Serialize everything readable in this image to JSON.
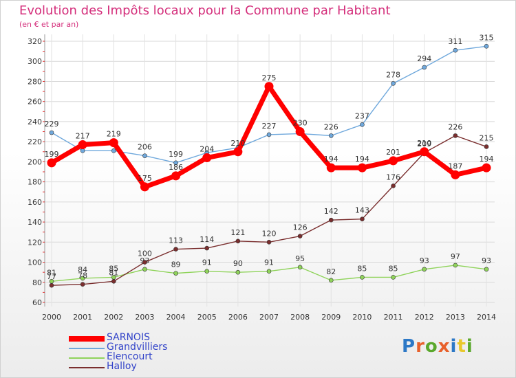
{
  "title": "Evolution des Impôts locaux pour la Commune par Habitant",
  "subtitle": "(en € et par an)",
  "brand": {
    "text": "Proxiti",
    "colors": [
      "#2c78c6",
      "#e8612c",
      "#5aa82c",
      "#e8612c",
      "#2c78c6",
      "#e8c82c",
      "#5aa82c"
    ]
  },
  "chart_data": {
    "type": "line",
    "x": [
      "2000",
      "2001",
      "2002",
      "2003",
      "2004",
      "2005",
      "2006",
      "2007",
      "2008",
      "2009",
      "2010",
      "2011",
      "2012",
      "2013",
      "2014"
    ],
    "ylim": [
      60,
      320
    ],
    "yticks": [
      60,
      80,
      100,
      120,
      140,
      160,
      180,
      200,
      220,
      240,
      260,
      280,
      300,
      320
    ],
    "grid": true,
    "legend_position": "bottom-left",
    "series": [
      {
        "name": "Grandvilliers",
        "color": "#6fa8dc",
        "values": [
          229,
          211,
          211,
          206,
          199,
          209,
          214,
          227,
          228,
          226,
          237,
          278,
          294,
          311,
          315
        ],
        "labels": [
          "229",
          "",
          "",
          "206",
          "199",
          "",
          "",
          "227",
          "",
          "226",
          "237",
          "278",
          "294",
          "311",
          "315"
        ]
      },
      {
        "name": "Elencourt",
        "color": "#8fd35a",
        "values": [
          81,
          84,
          85,
          93,
          89,
          91,
          90,
          91,
          95,
          82,
          85,
          85,
          93,
          97,
          93
        ],
        "labels": [
          "81",
          "84",
          "85",
          "93",
          "89",
          "91",
          "90",
          "91",
          "95",
          "82",
          "85",
          "85",
          "93",
          "97",
          "93"
        ]
      },
      {
        "name": "Halloy",
        "color": "#7a2e2e",
        "values": [
          77,
          78,
          81,
          100,
          113,
          114,
          121,
          120,
          126,
          142,
          143,
          176,
          209,
          226,
          215
        ],
        "labels": [
          "77",
          "78",
          "81",
          "100",
          "113",
          "114",
          "121",
          "120",
          "126",
          "142",
          "143",
          "176",
          "209",
          "226",
          "215"
        ]
      },
      {
        "name": "SARNOIS",
        "color": "#ff0000",
        "values": [
          199,
          217,
          219,
          175,
          186,
          204,
          210,
          275,
          230,
          194,
          194,
          201,
          210,
          187,
          194
        ],
        "labels": [
          "199",
          "217",
          "219",
          "175",
          "186",
          "204",
          "210",
          "275",
          "230",
          "194",
          "194",
          "201",
          "210",
          "187",
          "194"
        ]
      }
    ]
  }
}
